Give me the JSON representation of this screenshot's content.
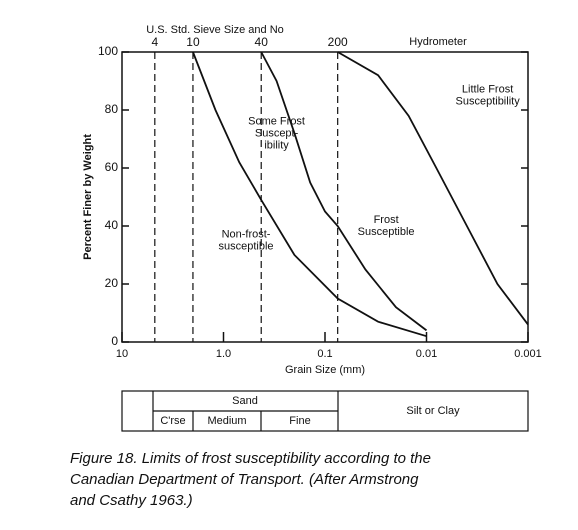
{
  "chart_data": {
    "type": "line",
    "top_axis_title": "U.S. Std. Sieve Size and No",
    "hydrometer_label": "Hydrometer",
    "x_label": "Grain Size (mm)",
    "y_label": "Percent Finer by Weight",
    "xscale": "log",
    "xlim": [
      10,
      0.001
    ],
    "xticks": [
      10,
      {
        "value": 1,
        "label": "1.0"
      },
      0.1,
      0.01,
      0.001
    ],
    "x2ticks": [
      {
        "value": 4.75,
        "label": "4"
      },
      {
        "value": 2,
        "label": "10"
      },
      {
        "value": 0.425,
        "label": "40"
      },
      {
        "value": 0.075,
        "label": "200"
      }
    ],
    "ylim": [
      0,
      100
    ],
    "yticks": [
      0,
      20,
      40,
      60,
      80,
      100
    ],
    "series": [
      {
        "color": "#111111",
        "x": [
          2,
          1.2,
          0.7,
          0.425,
          0.2,
          0.075,
          0.03,
          0.01
        ],
        "values": [
          100,
          80,
          62,
          49,
          30,
          15,
          7,
          2
        ]
      },
      {
        "color": "#111111",
        "x": [
          0.425,
          0.3,
          0.2,
          0.14,
          0.1,
          0.075,
          0.04,
          0.02,
          0.01
        ],
        "values": [
          100,
          90,
          72,
          55,
          45,
          40,
          25,
          12,
          4
        ]
      },
      {
        "color": "#111111",
        "x": [
          0.075,
          0.03,
          0.015,
          0.008,
          0.004,
          0.002,
          0.001
        ],
        "values": [
          100,
          92,
          78,
          60,
          40,
          20,
          6
        ]
      }
    ],
    "annotations": [
      {
        "lines": [
          "Some Frost",
          "Suscept-",
          "ibility"
        ],
        "x": 0.3,
        "y": 76
      },
      {
        "lines": [
          "Little Frost",
          "Susceptibility"
        ],
        "x": 0.0025,
        "y": 87
      },
      {
        "lines": [
          "Non-frost-",
          "susceptible"
        ],
        "x": 0.6,
        "y": 37
      },
      {
        "lines": [
          "Frost",
          "Susceptible"
        ],
        "x": 0.025,
        "y": 42
      }
    ]
  },
  "table": {
    "sand": "Sand",
    "coarse": "C'rse",
    "medium": "Medium",
    "fine": "Fine",
    "silt": "Silt or Clay"
  },
  "caption": [
    "Figure 18. Limits of frost susceptibility according to the",
    "Canadian Department of Transport. (After Armstrong",
    "and Csathy 1963.)"
  ]
}
